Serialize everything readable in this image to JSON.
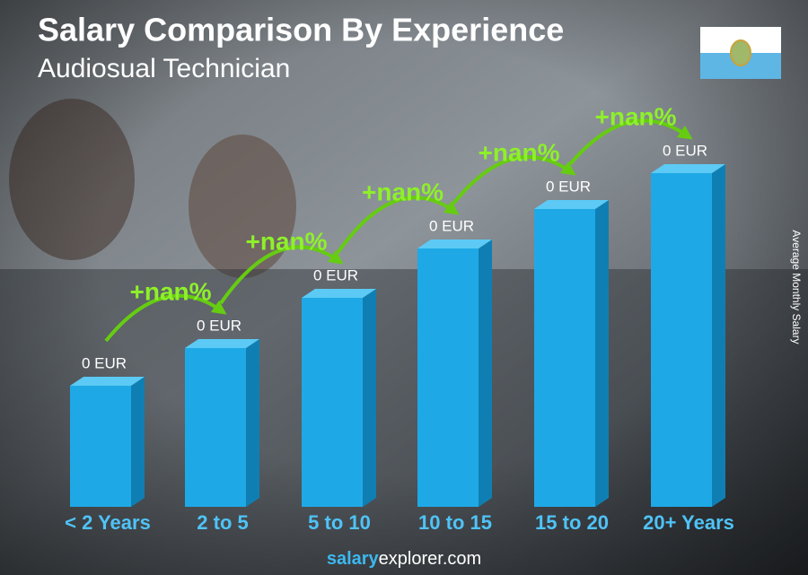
{
  "header": {
    "title": "Salary Comparison By Experience",
    "subtitle": "Audiosual Technician"
  },
  "axis_label": "Average Monthly Salary",
  "bars": [
    {
      "category": "< 2 Years",
      "value_label": "0 EUR"
    },
    {
      "category": "2 to 5",
      "value_label": "0 EUR"
    },
    {
      "category": "5 to 10",
      "value_label": "0 EUR"
    },
    {
      "category": "10 to 15",
      "value_label": "0 EUR"
    },
    {
      "category": "15 to 20",
      "value_label": "0 EUR"
    },
    {
      "category": "20+ Years",
      "value_label": "0 EUR"
    }
  ],
  "changes": [
    "+nan%",
    "+nan%",
    "+nan%",
    "+nan%",
    "+nan%"
  ],
  "footer": {
    "brand_bold": "salary",
    "brand_rest": "explorer.com"
  }
}
